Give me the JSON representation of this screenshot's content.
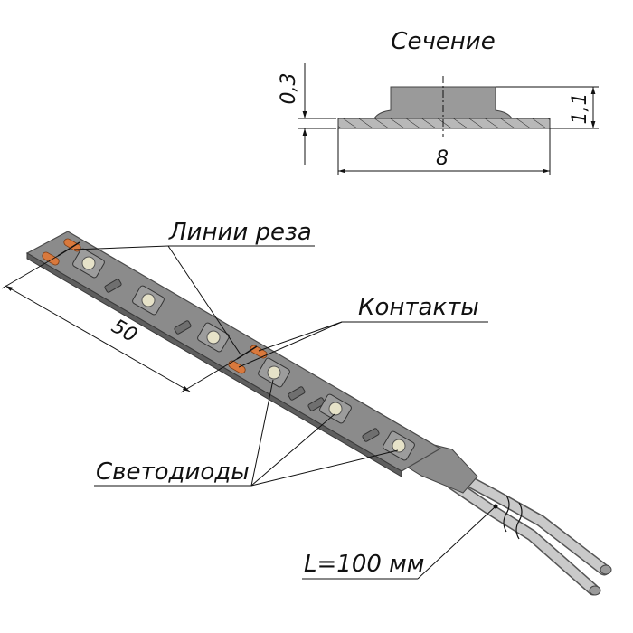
{
  "section": {
    "title": "Сечение",
    "thickness": "0,3",
    "height": "1,1",
    "width": "8"
  },
  "strip": {
    "pitch": "50",
    "cut_lines_label": "Линии реза",
    "contacts_label": "Контакты",
    "leds_label": "Светодиоды",
    "cable_label": "L=100 мм"
  },
  "colors": {
    "strip_fill": "#8a8a8a",
    "strip_edge": "#5e5e5e",
    "led_body": "#9c9c9c",
    "led_lens": "#e6e2c8",
    "contact": "#d9793d",
    "hatch": "#222222"
  }
}
